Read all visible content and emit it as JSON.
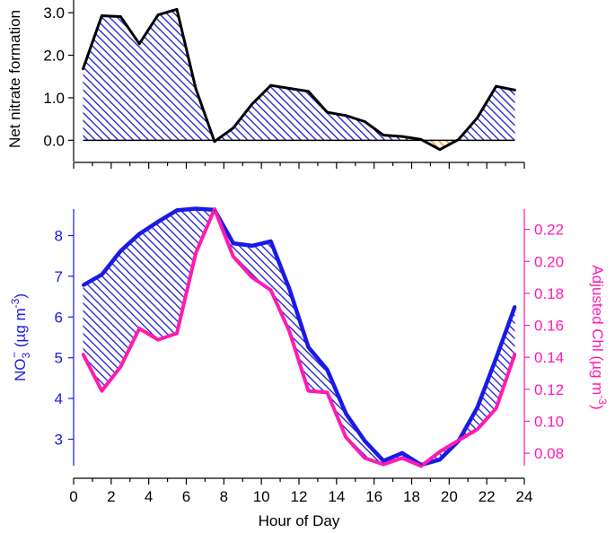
{
  "colors": {
    "hatch_blue": "#1a1acc",
    "hatch_orange": "#e8940a",
    "no3_line": "#1a1ae6",
    "chl_line": "#ff1ab3",
    "axis": "#000000"
  },
  "chart_data": [
    {
      "type": "area",
      "ylabel": "Net nitrate formation",
      "xlim": [
        0,
        24
      ],
      "ylim": [
        -0.5,
        3.3
      ],
      "yticks": [
        "0.0",
        "1.0",
        "2.0",
        "3.0"
      ],
      "series": [
        {
          "x": [
            0.5,
            1.5,
            2.5,
            3.5,
            4.5,
            5.5,
            6.5,
            7.5,
            8.5,
            9.5,
            10.5,
            11.5,
            12.5,
            13.5,
            14.5,
            15.5,
            16.5,
            17.5,
            18.5,
            19.5,
            20.5,
            21.5,
            22.5,
            23.5
          ],
          "values": [
            1.68,
            2.93,
            2.91,
            2.27,
            2.95,
            3.08,
            1.22,
            -0.03,
            0.29,
            0.85,
            1.29,
            1.22,
            1.15,
            0.66,
            0.58,
            0.44,
            0.12,
            0.09,
            0.02,
            -0.22,
            0.02,
            0.53,
            1.27,
            1.18
          ]
        }
      ]
    },
    {
      "type": "line",
      "xlabel": "Hour of Day",
      "ylabel_left": {
        "main": "NO",
        "sub": "3",
        "sup": "−",
        "unit_prefix": " (µg m",
        "unit_sup": "-3",
        "unit_suffix": ")"
      },
      "ylabel_right": {
        "main": "Adjusted Chl (µg m",
        "sup": "-3",
        "suffix": ")"
      },
      "xlim": [
        0,
        24
      ],
      "xticks": [
        "0",
        "2",
        "4",
        "6",
        "8",
        "10",
        "12",
        "14",
        "16",
        "18",
        "20",
        "22",
        "24"
      ],
      "ylim_left": [
        2.35,
        8.65
      ],
      "yticks_left": [
        "3",
        "4",
        "5",
        "6",
        "7",
        "8"
      ],
      "ylim_right": [
        0.0722,
        0.2327
      ],
      "yticks_right": [
        "0.08",
        "0.10",
        "0.12",
        "0.14",
        "0.16",
        "0.18",
        "0.20",
        "0.22"
      ],
      "x": [
        0.5,
        1.5,
        2.5,
        3.5,
        4.5,
        5.5,
        6.5,
        7.5,
        8.5,
        9.5,
        10.5,
        11.5,
        12.5,
        13.5,
        14.5,
        15.5,
        16.5,
        17.5,
        18.5,
        19.5,
        20.5,
        21.5,
        22.5,
        23.5
      ],
      "series": [
        {
          "axis": "left",
          "values": [
            6.78,
            7.04,
            7.62,
            8.04,
            8.34,
            8.62,
            8.66,
            8.63,
            7.81,
            7.75,
            7.86,
            6.68,
            5.26,
            4.71,
            3.63,
            2.96,
            2.47,
            2.66,
            2.37,
            2.5,
            2.96,
            3.78,
            4.99,
            6.26
          ]
        },
        {
          "axis": "right",
          "values": [
            0.142,
            0.119,
            0.134,
            0.158,
            0.151,
            0.155,
            0.205,
            0.2327,
            0.203,
            0.19,
            0.182,
            0.156,
            0.119,
            0.118,
            0.09,
            0.077,
            0.073,
            0.077,
            0.072,
            0.081,
            0.088,
            0.095,
            0.108,
            0.142
          ]
        }
      ]
    }
  ]
}
